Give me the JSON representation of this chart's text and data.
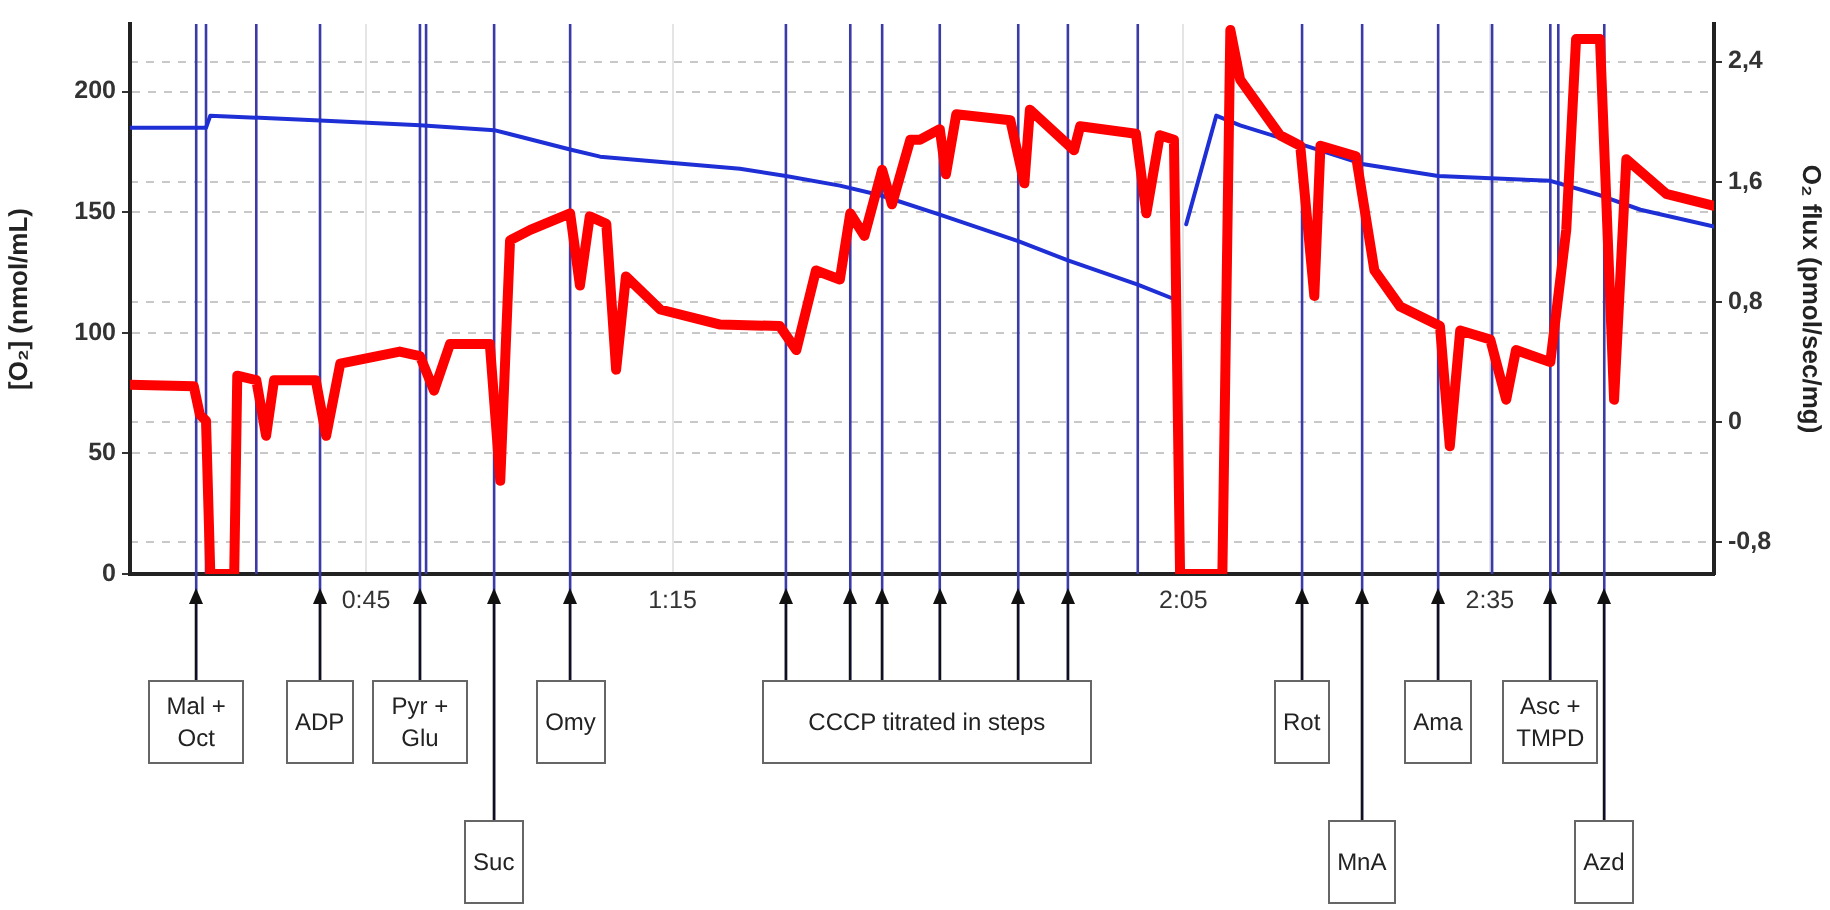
{
  "chart_data": {
    "type": "line",
    "ylabel": "[O₂] (nmol/mL)",
    "y2label": "O₂ flux (pmol/sec/mg)",
    "xlim": [
      0.365,
      2.949
    ],
    "xticks": [
      {
        "value": 0.75,
        "label": "0:45"
      },
      {
        "value": 1.25,
        "label": "1:15"
      },
      {
        "value": 2.0833,
        "label": "2:05"
      },
      {
        "value": 2.5833,
        "label": "2:35"
      }
    ],
    "ylim": [
      0,
      228
    ],
    "yticks": [
      0,
      50,
      100,
      150,
      200
    ],
    "y2lim": [
      -1.01,
      2.65
    ],
    "y2ticks": [
      {
        "value": -0.8,
        "label": "-0,8"
      },
      0,
      {
        "value": 0.8,
        "label": "0,8"
      },
      {
        "value": 1.6,
        "label": "1,6"
      },
      {
        "value": 2.4,
        "label": "2,4"
      }
    ],
    "grid": true,
    "legend": false,
    "series": [
      {
        "type": "line",
        "axis": "y",
        "color": "#1f2fd6",
        "x": [
          0.365,
          0.489,
          0.496,
          0.675,
          0.838,
          0.959,
          1.083,
          1.132,
          1.36,
          1.435,
          1.523,
          1.589,
          1.686,
          1.814,
          1.895,
          2.009,
          2.068,
          2.078,
          2.088,
          2.137,
          2.176,
          2.277,
          2.375,
          2.499,
          2.682,
          2.763,
          2.829,
          2.949
        ],
        "values": [
          185,
          185,
          190,
          188,
          186,
          184,
          176,
          173,
          168,
          165,
          161,
          157,
          149,
          138,
          130,
          120,
          114,
          null,
          145,
          190,
          186,
          178,
          170,
          165,
          163,
          157,
          151,
          144
        ]
      },
      {
        "type": "line",
        "axis": "y2",
        "color": "#ff0000",
        "x": [
          0.365,
          0.469,
          0.479,
          0.489,
          0.496,
          0.535,
          0.54,
          0.571,
          0.587,
          0.6,
          0.668,
          0.685,
          0.708,
          0.805,
          0.838,
          0.861,
          0.887,
          0.952,
          0.969,
          0.985,
          1.018,
          1.083,
          1.099,
          1.115,
          1.142,
          1.158,
          1.174,
          1.23,
          1.328,
          1.425,
          1.452,
          1.484,
          1.523,
          1.54,
          1.563,
          1.592,
          1.608,
          1.638,
          1.654,
          1.686,
          1.696,
          1.713,
          1.801,
          1.824,
          1.833,
          1.905,
          1.915,
          2.006,
          2.023,
          2.045,
          2.068,
          2.078,
          2.147,
          2.16,
          2.176,
          2.241,
          2.274,
          2.297,
          2.307,
          2.365,
          2.395,
          2.437,
          2.502,
          2.518,
          2.535,
          2.584,
          2.61,
          2.626,
          2.682,
          2.708,
          2.724,
          2.763,
          2.786,
          2.806,
          2.871,
          2.949
        ],
        "values": [
          0.25,
          0.24,
          0.05,
          0.01,
          -1.01,
          -1.01,
          0.31,
          0.28,
          -0.09,
          0.28,
          0.28,
          -0.09,
          0.39,
          0.47,
          0.44,
          0.21,
          0.52,
          0.52,
          -0.39,
          1.21,
          1.28,
          1.39,
          0.91,
          1.37,
          1.32,
          0.35,
          0.97,
          0.75,
          0.65,
          0.64,
          0.48,
          1.01,
          0.95,
          1.39,
          1.24,
          1.68,
          1.45,
          1.88,
          1.88,
          1.95,
          1.65,
          2.05,
          2.01,
          1.59,
          2.08,
          1.81,
          1.97,
          1.92,
          1.39,
          1.91,
          1.88,
          -1.01,
          -1.01,
          2.61,
          2.28,
          1.91,
          1.84,
          0.84,
          1.84,
          1.77,
          1.01,
          0.77,
          0.64,
          -0.16,
          0.61,
          0.55,
          0.15,
          0.48,
          0.4,
          1.28,
          2.55,
          2.55,
          0.15,
          1.75,
          1.52,
          1.44
        ]
      }
    ],
    "ref_lines": [
      {
        "axis": "x",
        "value": 0.473,
        "color": "#3a3aa8",
        "label": "Mal + Oct"
      },
      {
        "axis": "x",
        "value": 0.489,
        "color": "#3a3aa8"
      },
      {
        "axis": "x",
        "value": 0.571,
        "color": "#3a3aa8"
      },
      {
        "axis": "x",
        "value": 0.675,
        "color": "#3a3aa8",
        "label": "ADP"
      },
      {
        "axis": "x",
        "value": 0.838,
        "color": "#3a3aa8",
        "label": "Pyr + Glu"
      },
      {
        "axis": "x",
        "value": 0.848,
        "color": "#3a3aa8"
      },
      {
        "axis": "x",
        "value": 0.959,
        "color": "#3a3aa8",
        "label": "Suc"
      },
      {
        "axis": "x",
        "value": 1.083,
        "color": "#3a3aa8",
        "label": "Omy"
      },
      {
        "axis": "x",
        "value": 1.435,
        "color": "#3a3aa8",
        "label": "CCCP titrated in steps"
      },
      {
        "axis": "x",
        "value": 1.54,
        "color": "#3a3aa8",
        "label": null
      },
      {
        "axis": "x",
        "value": 1.592,
        "color": "#3a3aa8",
        "label": null
      },
      {
        "axis": "x",
        "value": 1.686,
        "color": "#3a3aa8",
        "label": null
      },
      {
        "axis": "x",
        "value": 1.814,
        "color": "#3a3aa8",
        "label": null
      },
      {
        "axis": "x",
        "value": 1.895,
        "color": "#3a3aa8",
        "label": null
      },
      {
        "axis": "x",
        "value": 2.009,
        "color": "#3a3aa8"
      },
      {
        "axis": "x",
        "value": 2.277,
        "color": "#3a3aa8",
        "label": "Rot"
      },
      {
        "axis": "x",
        "value": 2.375,
        "color": "#3a3aa8",
        "label": "MnA"
      },
      {
        "axis": "x",
        "value": 2.499,
        "color": "#3a3aa8",
        "label": "Ama"
      },
      {
        "axis": "x",
        "value": 2.587,
        "color": "#3a3aa8"
      },
      {
        "axis": "x",
        "value": 2.682,
        "color": "#3a3aa8",
        "label": "Asc + TMPD"
      },
      {
        "axis": "x",
        "value": 2.695,
        "color": "#3a3aa8"
      },
      {
        "axis": "x",
        "value": 2.77,
        "color": "#3a3aa8",
        "label": "Azd"
      }
    ]
  }
}
